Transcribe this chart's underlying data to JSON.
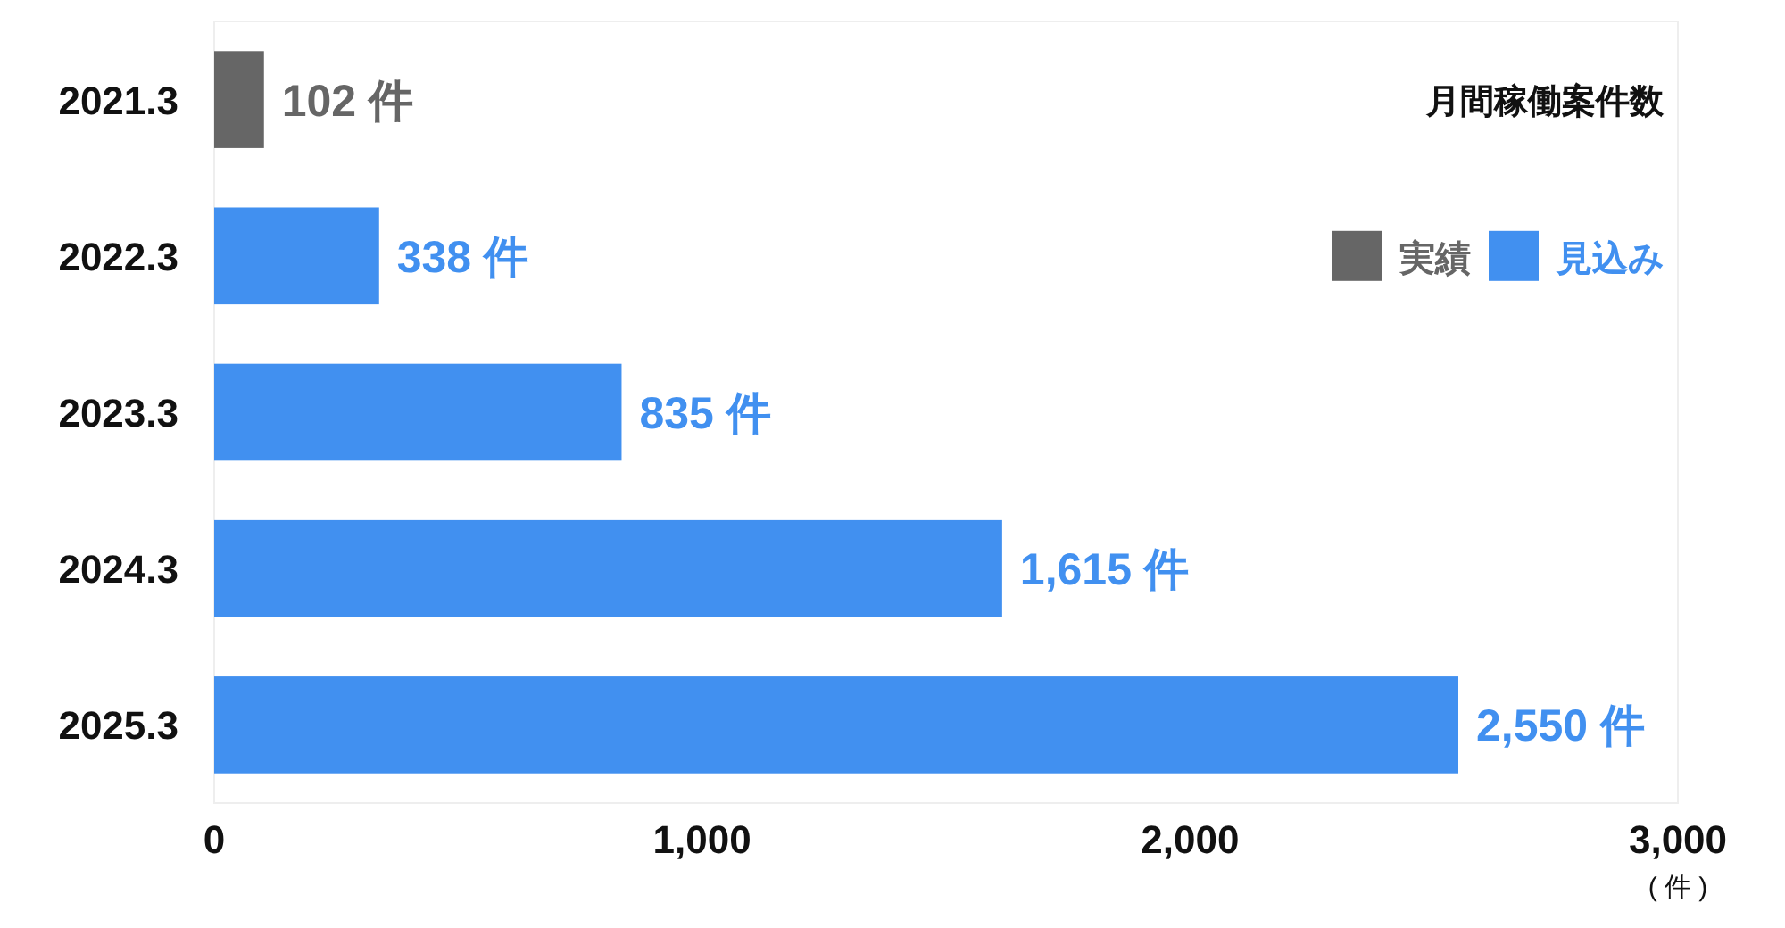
{
  "chart_data": {
    "type": "bar",
    "orientation": "horizontal",
    "title": "月間稼働案件数",
    "xlabel": "( 件 )",
    "categories": [
      "2021.3",
      "2022.3",
      "2023.3",
      "2024.3",
      "2025.3"
    ],
    "series": [
      {
        "name": "実績",
        "color": "#666666",
        "values": [
          102,
          null,
          null,
          null,
          null
        ],
        "value_labels": [
          "102 件",
          null,
          null,
          null,
          null
        ]
      },
      {
        "name": "見込み",
        "color": "#4190f0",
        "values": [
          null,
          338,
          835,
          1615,
          2550
        ],
        "value_labels": [
          null,
          "338 件",
          "835 件",
          "1,615 件",
          "2,550 件"
        ]
      }
    ],
    "xlim": [
      0,
      3000
    ],
    "xticks": [
      0,
      {
        "value": 1000,
        "label": "1,000"
      },
      {
        "value": 2000,
        "label": "2,000"
      },
      {
        "value": 3000,
        "label": "3,000"
      }
    ],
    "legend": "top right",
    "grid": false
  }
}
